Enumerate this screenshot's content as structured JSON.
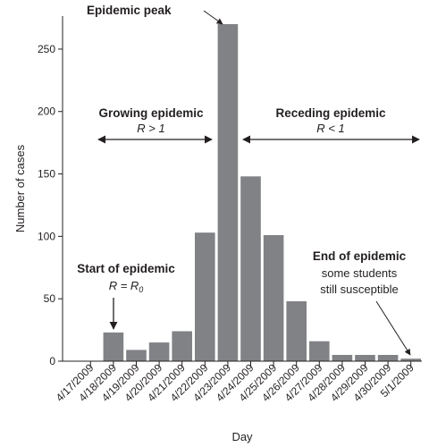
{
  "chart_data": {
    "type": "bar",
    "xlabel": "Day",
    "ylabel": "Number of cases",
    "ylim": [
      0,
      270
    ],
    "yticks": [
      0,
      50,
      100,
      150,
      200,
      250
    ],
    "grid": false,
    "bar_color": "#808285",
    "categories": [
      "4/17/2009",
      "4/18/2009",
      "4/19/2009",
      "4/20/2009",
      "4/21/2009",
      "4/22/2009",
      "4/23/2009",
      "4/24/2009",
      "4/25/2009",
      "4/26/2009",
      "4/27/2009",
      "4/28/2009",
      "4/29/2009",
      "4/30/2009",
      "5/1/2009"
    ],
    "values": [
      0,
      23,
      9,
      15,
      24,
      103,
      270,
      148,
      101,
      48,
      16,
      5,
      5,
      5,
      2
    ],
    "annotations": {
      "peak": "Epidemic peak",
      "growing_title": "Growing epidemic",
      "growing_r": "R > 1",
      "receding_title": "Receding epidemic",
      "receding_r": "R < 1",
      "start_title": "Start of epidemic",
      "start_r": "R = R",
      "start_r_sub": "0",
      "end_title": "End of epidemic",
      "end_line1": "some students",
      "end_line2": "still susceptible"
    }
  }
}
